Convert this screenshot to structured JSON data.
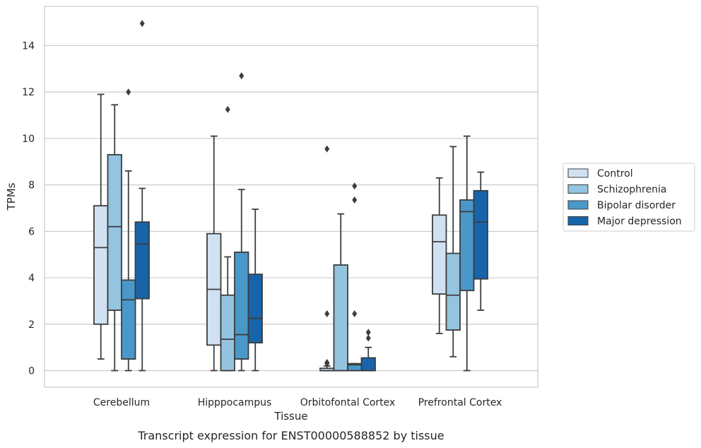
{
  "chart_data": {
    "type": "boxplot",
    "title": "Transcript expression for ENST00000588852 by tissue",
    "xlabel": "Tissue",
    "ylabel": "TPMs",
    "ylim": [
      -0.7,
      15.5
    ],
    "yticks": [
      0,
      2,
      4,
      6,
      8,
      10,
      12,
      14
    ],
    "grid": true,
    "legend_position": "right",
    "categories": [
      "Cerebellum",
      "Hipppocampus",
      "Orbitofontal Cortex",
      "Prefrontal Cortex"
    ],
    "series": [
      {
        "name": "Control",
        "color": "#d0e1f2",
        "boxes": [
          {
            "whislo": 0.5,
            "q1": 2.0,
            "med": 5.3,
            "q3": 7.1,
            "whishi": 11.9,
            "fliers": []
          },
          {
            "whislo": 0.0,
            "q1": 1.1,
            "med": 3.5,
            "q3": 5.9,
            "whishi": 10.1,
            "fliers": []
          },
          {
            "whislo": 0.0,
            "q1": 0.0,
            "med": 0.0,
            "q3": 0.1,
            "whishi": 0.2,
            "fliers": [
              2.45,
              9.55,
              0.35,
              0.3
            ]
          },
          {
            "whislo": 1.6,
            "q1": 3.3,
            "med": 5.55,
            "q3": 6.7,
            "whishi": 8.3,
            "fliers": []
          }
        ]
      },
      {
        "name": "Schizophrenia",
        "color": "#94c4df",
        "boxes": [
          {
            "whislo": 0.0,
            "q1": 2.6,
            "med": 6.2,
            "q3": 9.3,
            "whishi": 11.45,
            "fliers": []
          },
          {
            "whislo": 0.0,
            "q1": 0.0,
            "med": 1.35,
            "q3": 3.25,
            "whishi": 4.9,
            "fliers": [
              11.25
            ]
          },
          {
            "whislo": 0.0,
            "q1": 0.0,
            "med": 0.0,
            "q3": 4.55,
            "whishi": 6.75,
            "fliers": []
          },
          {
            "whislo": 0.6,
            "q1": 1.75,
            "med": 3.25,
            "q3": 5.05,
            "whishi": 9.65,
            "fliers": []
          }
        ]
      },
      {
        "name": "Bipolar disorder",
        "color": "#4a98c9",
        "boxes": [
          {
            "whislo": 0.0,
            "q1": 0.5,
            "med": 3.05,
            "q3": 3.9,
            "whishi": 8.6,
            "fliers": [
              12.0
            ]
          },
          {
            "whislo": 0.0,
            "q1": 0.5,
            "med": 1.55,
            "q3": 5.1,
            "whishi": 7.8,
            "fliers": [
              12.7
            ]
          },
          {
            "whislo": 0.0,
            "q1": 0.0,
            "med": 0.25,
            "q3": 0.3,
            "whishi": 0.3,
            "fliers": [
              2.45,
              7.35,
              7.95
            ]
          },
          {
            "whislo": 0.0,
            "q1": 3.45,
            "med": 6.85,
            "q3": 7.35,
            "whishi": 10.1,
            "fliers": []
          }
        ]
      },
      {
        "name": "Major depression",
        "color": "#1764ab",
        "boxes": [
          {
            "whislo": 0.0,
            "q1": 3.1,
            "med": 5.45,
            "q3": 6.4,
            "whishi": 7.85,
            "fliers": [
              14.95
            ]
          },
          {
            "whislo": 0.0,
            "q1": 1.2,
            "med": 2.25,
            "q3": 4.15,
            "whishi": 6.95,
            "fliers": []
          },
          {
            "whislo": 0.0,
            "q1": 0.0,
            "med": 0.0,
            "q3": 0.55,
            "whishi": 1.0,
            "fliers": [
              1.4,
              1.65
            ]
          },
          {
            "whislo": 2.6,
            "q1": 3.95,
            "med": 6.4,
            "q3": 7.75,
            "whishi": 8.55,
            "fliers": []
          }
        ]
      }
    ]
  }
}
